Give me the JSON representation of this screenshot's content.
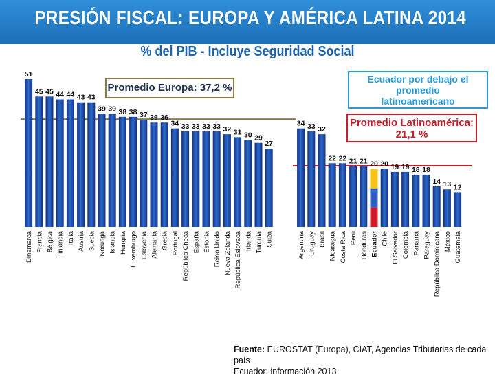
{
  "title": "PRESIÓN FISCAL: EUROPA Y AMÉRICA LATINA 2014",
  "subtitle": "% del PIB - Incluye Seguridad Social",
  "callouts": {
    "europe": "Promedio Europa: 37,2 %",
    "ecuador_line1": "Ecuador por debajo el",
    "ecuador_line2": "promedio",
    "ecuador_line3": "latinoamericano",
    "latam_line1": "Promedio Latinoamérica:",
    "latam_line2": "21,1 %"
  },
  "source": {
    "label": "Fuente:",
    "text": " EUROSTAT (Europa), CIAT, Agencias Tributarias de cada país",
    "note": "Ecuador: información 2013"
  },
  "colors": {
    "bar_dark": "#12337f",
    "bar_light": "#2c68cc",
    "europe_avg_line": "#8b7d4a",
    "latam_avg_line": "#c81e2a",
    "ecuador_yellow": "#f6c416",
    "ecuador_blue": "#2f5fc2",
    "ecuador_red": "#d21e2a"
  },
  "chart_data": {
    "type": "bar",
    "title": "PRESIÓN FISCAL: EUROPA Y AMÉRICA LATINA 2014",
    "ylabel": "% del PIB",
    "ylim": [
      0,
      55
    ],
    "grid": false,
    "series": [
      {
        "name": "Europa",
        "categories": [
          "Dinamarca",
          "Francia",
          "Bélgica",
          "Finlandia",
          "Italia",
          "Austria",
          "Suecia",
          "Noruega",
          "Islandia",
          "Hungría",
          "Luxemburgo",
          "Eslovenia",
          "Alemania",
          "Grecia",
          "Portugal",
          "República Checa",
          "España",
          "Estonia",
          "Reino Unido",
          "Nueva Zelanda",
          "República Eslovaca",
          "Irlanda",
          "Turquía",
          "Suiza"
        ],
        "values": [
          51,
          45,
          45,
          44,
          44,
          43,
          43,
          39,
          39,
          38,
          38,
          37,
          36,
          36,
          34,
          33,
          33,
          33,
          33,
          32,
          31,
          30,
          29,
          27
        ],
        "average": 37.2
      },
      {
        "name": "América Latina",
        "categories": [
          "Argentina",
          "Uruguay",
          "Brasil",
          "Nicaragua",
          "Costa Rica",
          "Perú",
          "Honduras",
          "Ecuador",
          "Chile",
          "El Salvador",
          "Colombia",
          "Panamá",
          "Paraguay",
          "República Dominicana",
          "México",
          "Guatemala"
        ],
        "values": [
          34,
          33,
          32,
          22,
          22,
          21,
          21,
          20,
          20,
          19,
          19,
          18,
          18,
          14,
          13,
          12
        ],
        "average": 21.1,
        "highlight": "Ecuador"
      }
    ]
  }
}
